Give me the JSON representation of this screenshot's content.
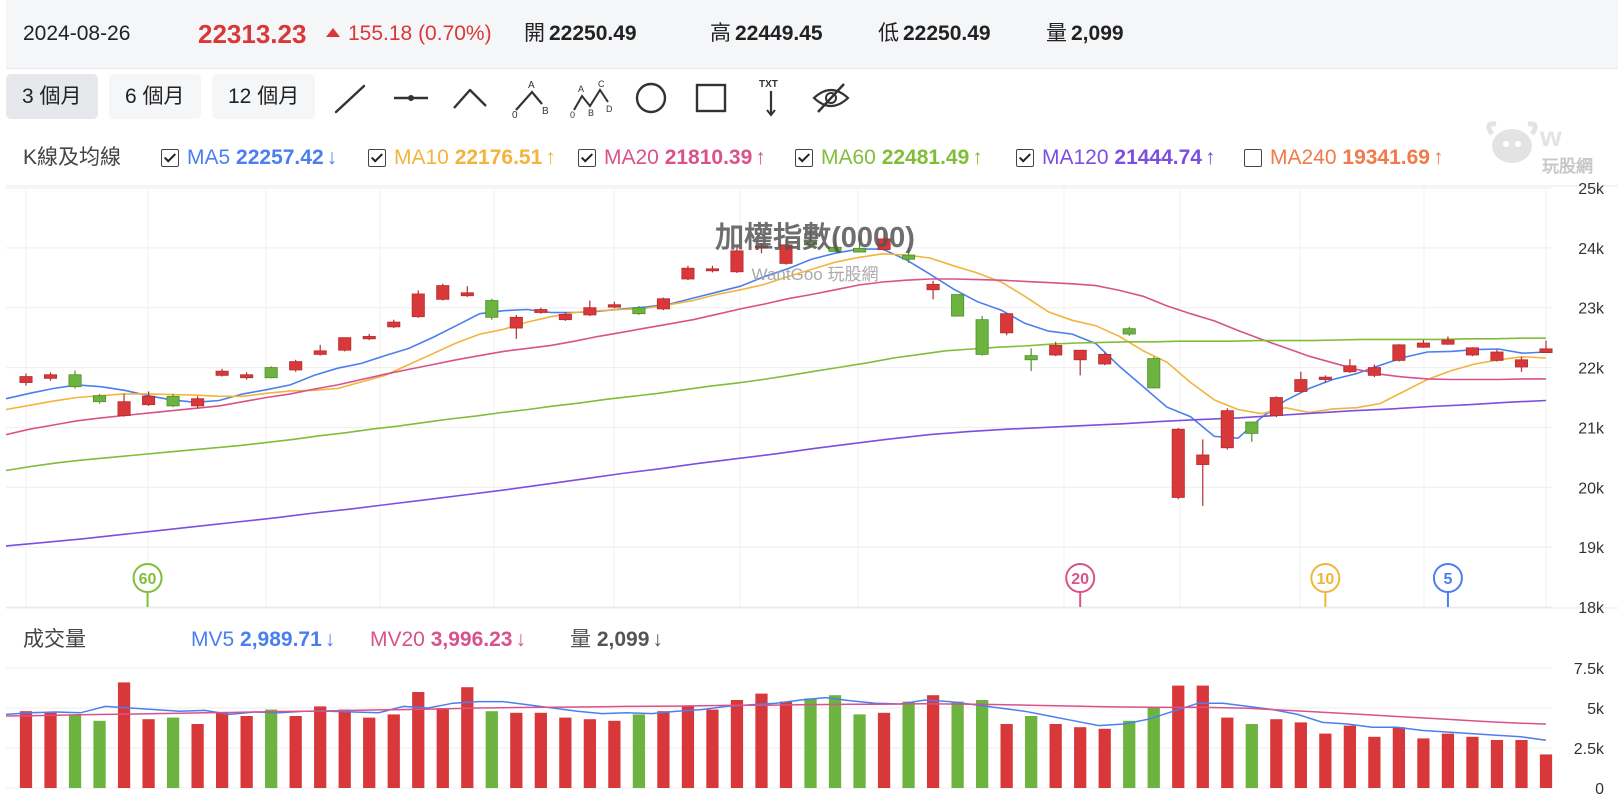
{
  "header": {
    "date": "2024-08-26",
    "price": "22313.23",
    "change": "155.18 (0.70%)",
    "open_label": "開",
    "open": "22250.49",
    "high_label": "高",
    "high": "22449.45",
    "low_label": "低",
    "low": "22250.49",
    "volume_label": "量",
    "volume": "2,099",
    "up_color": "#d9383a"
  },
  "toolbar": {
    "ranges": [
      "3 個月",
      "6 個月",
      "12 個月"
    ],
    "active_range": "3 個月",
    "tools": [
      "line-tool-icon",
      "horizontal-line-tool-icon",
      "angle-tool-icon",
      "abc-wave-tool-icon",
      "abcd-wave-tool-icon",
      "circle-tool-icon",
      "rectangle-tool-icon",
      "text-tool-icon",
      "hide-drawings-icon"
    ]
  },
  "legend": {
    "title": "K線及均線",
    "items": [
      {
        "name": "MA5",
        "value": "22257.42",
        "dir": "↓",
        "checked": true,
        "color": "#4a7ff0"
      },
      {
        "name": "MA10",
        "value": "22176.51",
        "dir": "↑",
        "checked": true,
        "color": "#f3b43c"
      },
      {
        "name": "MA20",
        "value": "21810.39",
        "dir": "↑",
        "checked": true,
        "color": "#d9528a"
      },
      {
        "name": "MA60",
        "value": "22481.49",
        "dir": "↑",
        "checked": true,
        "color": "#82bd3a"
      },
      {
        "name": "MA120",
        "value": "21444.74",
        "dir": "↑",
        "checked": true,
        "color": "#7b4fe0"
      },
      {
        "name": "MA240",
        "value": "19341.69",
        "dir": "↑",
        "checked": false,
        "color": "#f07a4a"
      }
    ]
  },
  "watermark": {
    "title": "加權指數(0000)",
    "subtitle": "WantGoo 玩股網",
    "logo_text": "玩股網"
  },
  "volume_legend": {
    "title": "成交量",
    "items": [
      {
        "name": "MV5",
        "value": "2,989.71",
        "dir": "↓",
        "color": "#4a7ff0"
      },
      {
        "name": "MV20",
        "value": "3,996.23",
        "dir": "↓",
        "color": "#d9528a"
      },
      {
        "name": "量",
        "value": "2,099",
        "dir": "↓",
        "color": "#555555"
      }
    ]
  },
  "chart_data": [
    {
      "type": "candlestick",
      "y_axis_ticks": [
        "25k",
        "24k",
        "23k",
        "22k",
        "21k",
        "20k",
        "19k",
        "18k"
      ],
      "ylim": [
        18000,
        25000
      ],
      "candles": [
        {
          "o": 21750,
          "h": 21900,
          "l": 21700,
          "c": 21850
        },
        {
          "o": 21820,
          "h": 21920,
          "l": 21780,
          "c": 21880
        },
        {
          "o": 21880,
          "h": 21950,
          "l": 21650,
          "c": 21680
        },
        {
          "o": 21530,
          "h": 21560,
          "l": 21400,
          "c": 21430
        },
        {
          "o": 21200,
          "h": 21560,
          "l": 21180,
          "c": 21430
        },
        {
          "o": 21380,
          "h": 21600,
          "l": 21360,
          "c": 21520
        },
        {
          "o": 21520,
          "h": 21560,
          "l": 21340,
          "c": 21360
        },
        {
          "o": 21360,
          "h": 21520,
          "l": 21320,
          "c": 21480
        },
        {
          "o": 21870,
          "h": 21980,
          "l": 21850,
          "c": 21940
        },
        {
          "o": 21830,
          "h": 21920,
          "l": 21800,
          "c": 21880
        },
        {
          "o": 22000,
          "h": 22020,
          "l": 21820,
          "c": 21830
        },
        {
          "o": 21960,
          "h": 22130,
          "l": 21930,
          "c": 22100
        },
        {
          "o": 22220,
          "h": 22380,
          "l": 22200,
          "c": 22280
        },
        {
          "o": 22290,
          "h": 22500,
          "l": 22270,
          "c": 22500
        },
        {
          "o": 22480,
          "h": 22560,
          "l": 22460,
          "c": 22520
        },
        {
          "o": 22680,
          "h": 22800,
          "l": 22660,
          "c": 22760
        },
        {
          "o": 22850,
          "h": 23290,
          "l": 22830,
          "c": 23230
        },
        {
          "o": 23140,
          "h": 23400,
          "l": 23120,
          "c": 23370
        },
        {
          "o": 23200,
          "h": 23360,
          "l": 23180,
          "c": 23250
        },
        {
          "o": 23120,
          "h": 23150,
          "l": 22800,
          "c": 22840
        },
        {
          "o": 22660,
          "h": 22880,
          "l": 22480,
          "c": 22840
        },
        {
          "o": 22920,
          "h": 23000,
          "l": 22900,
          "c": 22970
        },
        {
          "o": 22800,
          "h": 22920,
          "l": 22780,
          "c": 22890
        },
        {
          "o": 22880,
          "h": 23120,
          "l": 22860,
          "c": 23000
        },
        {
          "o": 23010,
          "h": 23100,
          "l": 22990,
          "c": 23050
        },
        {
          "o": 23000,
          "h": 23030,
          "l": 22880,
          "c": 22900
        },
        {
          "o": 22980,
          "h": 23170,
          "l": 22960,
          "c": 23150
        },
        {
          "o": 23480,
          "h": 23700,
          "l": 23460,
          "c": 23660
        },
        {
          "o": 23620,
          "h": 23700,
          "l": 23590,
          "c": 23650
        },
        {
          "o": 23600,
          "h": 24020,
          "l": 23580,
          "c": 23950
        },
        {
          "o": 24020,
          "h": 24080,
          "l": 23910,
          "c": 24030
        },
        {
          "o": 23740,
          "h": 24130,
          "l": 23720,
          "c": 24050
        },
        {
          "o": 24090,
          "h": 24300,
          "l": 24000,
          "c": 24050
        },
        {
          "o": 24010,
          "h": 24210,
          "l": 23950,
          "c": 23940
        },
        {
          "o": 23990,
          "h": 24180,
          "l": 23950,
          "c": 23930
        },
        {
          "o": 23970,
          "h": 24280,
          "l": 23960,
          "c": 24150
        },
        {
          "o": 23880,
          "h": 24000,
          "l": 23750,
          "c": 23810
        },
        {
          "o": 23300,
          "h": 23450,
          "l": 23140,
          "c": 23390
        },
        {
          "o": 23220,
          "h": 23220,
          "l": 22850,
          "c": 22860
        },
        {
          "o": 22800,
          "h": 22860,
          "l": 22200,
          "c": 22220
        },
        {
          "o": 22580,
          "h": 22900,
          "l": 22540,
          "c": 22900
        },
        {
          "o": 22200,
          "h": 22320,
          "l": 21940,
          "c": 22130
        },
        {
          "o": 22210,
          "h": 22430,
          "l": 22190,
          "c": 22370
        },
        {
          "o": 22130,
          "h": 22290,
          "l": 21870,
          "c": 22290
        },
        {
          "o": 22060,
          "h": 22250,
          "l": 22040,
          "c": 22220
        },
        {
          "o": 22650,
          "h": 22680,
          "l": 22530,
          "c": 22560
        },
        {
          "o": 22150,
          "h": 22180,
          "l": 21650,
          "c": 21660
        },
        {
          "o": 19830,
          "h": 20990,
          "l": 19800,
          "c": 20970
        },
        {
          "o": 20380,
          "h": 20800,
          "l": 19690,
          "c": 20540
        },
        {
          "o": 20660,
          "h": 21320,
          "l": 20630,
          "c": 21280
        },
        {
          "o": 21090,
          "h": 21100,
          "l": 20760,
          "c": 20900
        },
        {
          "o": 21200,
          "h": 21520,
          "l": 21170,
          "c": 21500
        },
        {
          "o": 21600,
          "h": 21930,
          "l": 21580,
          "c": 21800
        },
        {
          "o": 21800,
          "h": 21870,
          "l": 21750,
          "c": 21840
        },
        {
          "o": 21930,
          "h": 22140,
          "l": 21910,
          "c": 22030
        },
        {
          "o": 21870,
          "h": 22050,
          "l": 21840,
          "c": 22000
        },
        {
          "o": 22120,
          "h": 22390,
          "l": 22100,
          "c": 22380
        },
        {
          "o": 22340,
          "h": 22460,
          "l": 22330,
          "c": 22410
        },
        {
          "o": 22390,
          "h": 22520,
          "l": 22380,
          "c": 22460
        },
        {
          "o": 22210,
          "h": 22340,
          "l": 22190,
          "c": 22330
        },
        {
          "o": 22120,
          "h": 22300,
          "l": 22100,
          "c": 22260
        },
        {
          "o": 22010,
          "h": 22180,
          "l": 21930,
          "c": 22130
        },
        {
          "o": 22250,
          "h": 22450,
          "l": 22250,
          "c": 22313
        }
      ],
      "ma_lines": [
        {
          "name": "MA5",
          "color": "#4a7ff0",
          "values": [
            21480,
            21570,
            21650,
            21710,
            21680,
            21620,
            21530,
            21460,
            21420,
            21450,
            21560,
            21630,
            21710,
            21870,
            21990,
            22070,
            22200,
            22320,
            22500,
            22700,
            22900,
            22950,
            22970,
            22920,
            22920,
            22940,
            22980,
            23010,
            23060,
            23160,
            23260,
            23360,
            23520,
            23650,
            23810,
            23910,
            23980,
            23980,
            23800,
            23560,
            23310,
            23100,
            22960,
            22740,
            22610,
            22560,
            22400,
            22020,
            21680,
            21340,
            21180,
            20850,
            20820,
            21170,
            21450,
            21650,
            21800,
            21900,
            22040,
            22170,
            22260,
            22270,
            22300,
            22310,
            22240,
            22260
          ]
        },
        {
          "name": "MA10",
          "color": "#f3b43c",
          "values": [
            21300,
            21370,
            21440,
            21500,
            21530,
            21560,
            21560,
            21550,
            21540,
            21520,
            21520,
            21570,
            21610,
            21620,
            21650,
            21760,
            21870,
            22050,
            22230,
            22410,
            22560,
            22640,
            22760,
            22850,
            22920,
            22950,
            22970,
            22990,
            23050,
            23120,
            23220,
            23300,
            23390,
            23520,
            23640,
            23760,
            23840,
            23900,
            23880,
            23830,
            23700,
            23580,
            23430,
            23190,
            22930,
            22790,
            22700,
            22520,
            22280,
            22090,
            21750,
            21460,
            21300,
            21230,
            21330,
            21250,
            21310,
            21330,
            21400,
            21600,
            21800,
            21950,
            22060,
            22130,
            22180,
            22160
          ]
        },
        {
          "name": "MA20",
          "color": "#d9528a",
          "values": [
            20880,
            20970,
            21040,
            21110,
            21160,
            21200,
            21240,
            21280,
            21320,
            21360,
            21430,
            21500,
            21560,
            21640,
            21710,
            21800,
            21890,
            21970,
            22050,
            22130,
            22200,
            22270,
            22320,
            22370,
            22440,
            22520,
            22590,
            22660,
            22730,
            22800,
            22890,
            22980,
            23060,
            23150,
            23220,
            23300,
            23380,
            23430,
            23460,
            23480,
            23480,
            23470,
            23460,
            23440,
            23420,
            23400,
            23370,
            23290,
            23190,
            23030,
            22900,
            22780,
            22620,
            22470,
            22330,
            22190,
            22080,
            21970,
            21890,
            21840,
            21810,
            21800,
            21800,
            21800,
            21810,
            21810
          ]
        },
        {
          "name": "MA60",
          "color": "#82bd3a",
          "values": [
            20280,
            20350,
            20410,
            20460,
            20500,
            20540,
            20580,
            20620,
            20660,
            20700,
            20750,
            20800,
            20860,
            20910,
            20970,
            21020,
            21080,
            21140,
            21190,
            21250,
            21300,
            21360,
            21410,
            21470,
            21520,
            21570,
            21630,
            21690,
            21740,
            21800,
            21870,
            21940,
            22010,
            22080,
            22160,
            22220,
            22280,
            22310,
            22340,
            22360,
            22390,
            22410,
            22420,
            22430,
            22430,
            22440,
            22440,
            22440,
            22450,
            22450,
            22450,
            22460,
            22470,
            22470,
            22470,
            22470,
            22480,
            22480,
            22490,
            22490
          ]
        },
        {
          "name": "MA120",
          "color": "#7b4fe0",
          "values": [
            19020,
            19080,
            19140,
            19210,
            19280,
            19350,
            19420,
            19490,
            19570,
            19640,
            19720,
            19800,
            19880,
            19960,
            20050,
            20140,
            20230,
            20310,
            20400,
            20480,
            20560,
            20650,
            20730,
            20810,
            20880,
            20930,
            20970,
            21000,
            21030,
            21060,
            21100,
            21130,
            21160,
            21200,
            21240,
            21280,
            21310,
            21350,
            21380,
            21420,
            21450
          ]
        }
      ],
      "markers": [
        {
          "label": "60",
          "color": "#82bd3a",
          "index": 3
        },
        {
          "label": "20",
          "color": "#d9528a",
          "index": 43
        },
        {
          "label": "10",
          "color": "#f3b43c",
          "index": 53
        },
        {
          "label": "5",
          "color": "#4a7ff0",
          "index": 58
        }
      ]
    },
    {
      "type": "bar",
      "title": "成交量",
      "y_axis_ticks": [
        "7.5k",
        "5k",
        "2.5k",
        "0"
      ],
      "ylim": [
        0,
        7500
      ],
      "volumes": [
        4800,
        4700,
        4600,
        4200,
        6600,
        4300,
        4400,
        4000,
        4700,
        4500,
        4900,
        4500,
        5100,
        4900,
        4400,
        4600,
        6000,
        5000,
        6300,
        4800,
        4700,
        4700,
        4400,
        4300,
        4200,
        4600,
        4800,
        5100,
        4900,
        5500,
        5900,
        5400,
        5600,
        5800,
        4600,
        4700,
        5400,
        5800,
        5400,
        5500,
        4000,
        4500,
        4000,
        3800,
        3700,
        4200,
        5000,
        6400,
        6400,
        4400,
        4000,
        4300,
        4100,
        3400,
        3900,
        3200,
        3800,
        3100,
        3400,
        3200,
        3000,
        3000,
        2099
      ],
      "mv_lines": [
        {
          "name": "MV5",
          "color": "#4a7ff0",
          "values": [
            4600,
            4700,
            4750,
            4700,
            5100,
            5000,
            4900,
            4800,
            4850,
            4600,
            4750,
            4700,
            4800,
            4800,
            4750,
            4700,
            5100,
            5000,
            5300,
            5400,
            5400,
            5200,
            5000,
            4800,
            4650,
            4700,
            4650,
            4800,
            4900,
            5100,
            5200,
            5300,
            5500,
            5650,
            5450,
            5300,
            5250,
            5500,
            5400,
            5200,
            5000,
            4800,
            4500,
            4200,
            3900,
            4000,
            4300,
            4800,
            5300,
            5300,
            5100,
            4900,
            4600,
            4100,
            4000,
            3800,
            3800,
            3600,
            3500,
            3400,
            3300,
            3200,
            2990
          ]
        },
        {
          "name": "MV20",
          "color": "#d9528a",
          "values": [
            4500,
            4520,
            4550,
            4580,
            4600,
            4620,
            4650,
            4670,
            4700,
            4720,
            4750,
            4780,
            4800,
            4820,
            4850,
            4880,
            4900,
            4930,
            4960,
            5000,
            5020,
            5040,
            5050,
            5060,
            5080,
            5100,
            5110,
            5120,
            5140,
            5160,
            5170,
            5180,
            5200,
            5220,
            5230,
            5240,
            5250,
            5260,
            5250,
            5230,
            5210,
            5180,
            5150,
            5120,
            5090,
            5060,
            5050,
            5040,
            5050,
            5020,
            4980,
            4900,
            4820,
            4740,
            4650,
            4560,
            4470,
            4380,
            4300,
            4200,
            4120,
            4050,
            3996
          ]
        }
      ]
    }
  ]
}
